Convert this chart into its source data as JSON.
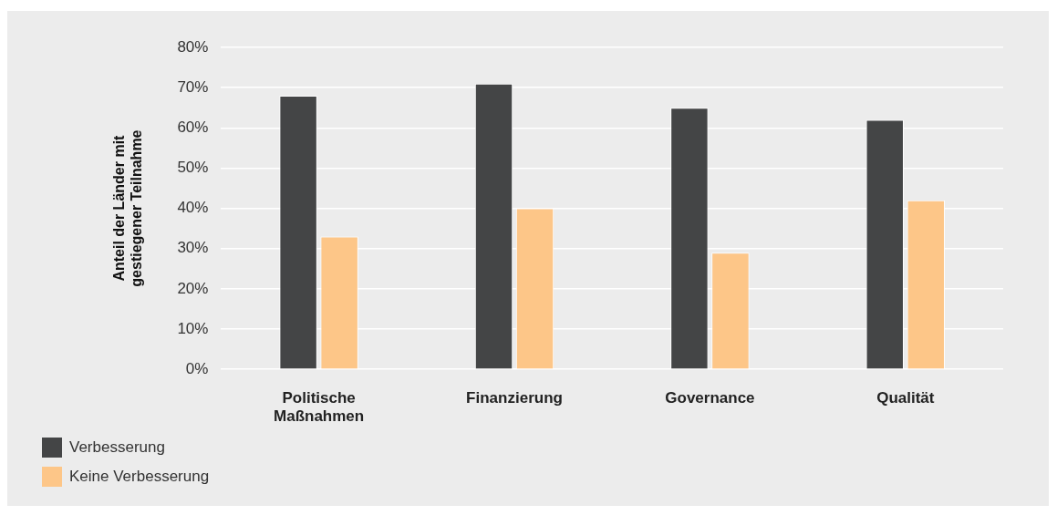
{
  "chart_data": {
    "type": "bar",
    "ylabel": "Anteil der Länder mit gestiegener Teilnahme",
    "categories": [
      "Politische Maßnahmen",
      "Finanzierung",
      "Governance",
      "Qualität"
    ],
    "series": [
      {
        "name": "Verbesserung",
        "color": "#444546",
        "values": [
          68,
          71,
          65,
          62
        ]
      },
      {
        "name": "Keine Verbesserung",
        "color": "#fdc688",
        "values": [
          33,
          40,
          29,
          42
        ]
      }
    ],
    "ylim": [
      0,
      80
    ],
    "yticks": [
      {
        "value": 0,
        "label": "0%"
      },
      {
        "value": 10,
        "label": "10%"
      },
      {
        "value": 20,
        "label": "20%"
      },
      {
        "value": 30,
        "label": "30%"
      },
      {
        "value": 40,
        "label": "40%"
      },
      {
        "value": 50,
        "label": "50%"
      },
      {
        "value": 60,
        "label": "60%"
      },
      {
        "value": 70,
        "label": "70%"
      },
      {
        "value": 80,
        "label": "80%"
      }
    ],
    "grid": "y",
    "legend": "bottom left"
  }
}
